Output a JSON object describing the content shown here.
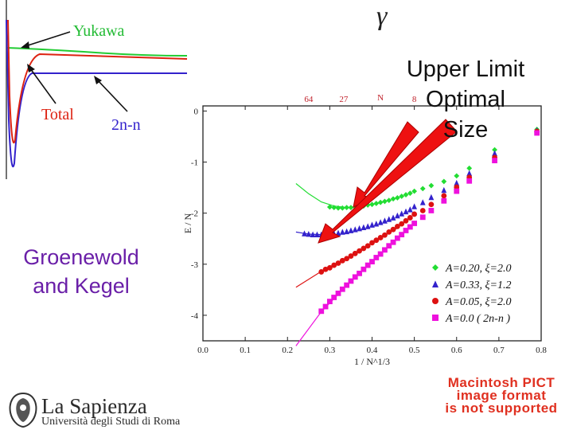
{
  "slide": {
    "symbol": "γ",
    "callout": [
      "Upper Limit",
      "Optimal",
      "Size"
    ],
    "left_caption": [
      "Groenewold",
      "and Kegel"
    ],
    "pict_notice": [
      "Macintosh PICT",
      "image format",
      "is not supported"
    ],
    "logo": {
      "name": "La Sapienza",
      "subtitle": "Università degli Studi di Roma",
      "icon": "sapienza-seal"
    }
  },
  "chart_data": [
    {
      "type": "line",
      "title": "",
      "labels": [
        "Yukawa",
        "Total",
        "2n-n"
      ],
      "series": [
        {
          "name": "Yukawa",
          "color": "#22cc33"
        },
        {
          "name": "Total",
          "color": "#dd2211"
        },
        {
          "name": "2n-n",
          "color": "#3322cc"
        }
      ]
    },
    {
      "type": "scatter",
      "xlabel": "1 / N^1/3",
      "ylabel": "E / N",
      "xlim": [
        0.0,
        0.8
      ],
      "ylim": [
        -4.5,
        0.1
      ],
      "x_ticks": [
        "0.0",
        "0.1",
        "0.2",
        "0.3",
        "0.4",
        "0.5",
        "0.6",
        "0.7",
        "0.8"
      ],
      "y_ticks": [
        "0",
        "-1",
        "-2",
        "-3",
        "-4"
      ],
      "top_axis_label": "N",
      "top_ticks": [
        {
          "label": "64",
          "x": 0.25
        },
        {
          "label": "27",
          "x": 0.333
        },
        {
          "label": "8",
          "x": 0.5
        }
      ],
      "legend_position": "bottom-right",
      "series": [
        {
          "name": "A=0.20, ξ=2.0",
          "color": "#22dd33",
          "marker": "diamond",
          "x": [
            0.3,
            0.31,
            0.32,
            0.33,
            0.34,
            0.35,
            0.36,
            0.37,
            0.38,
            0.39,
            0.4,
            0.41,
            0.42,
            0.43,
            0.44,
            0.45,
            0.46,
            0.47,
            0.48,
            0.49,
            0.5,
            0.52,
            0.54,
            0.57,
            0.6,
            0.63,
            0.69,
            0.79
          ],
          "y": [
            -1.88,
            -1.89,
            -1.9,
            -1.9,
            -1.89,
            -1.89,
            -1.88,
            -1.87,
            -1.86,
            -1.84,
            -1.83,
            -1.81,
            -1.79,
            -1.77,
            -1.75,
            -1.72,
            -1.7,
            -1.67,
            -1.64,
            -1.61,
            -1.57,
            -1.52,
            -1.46,
            -1.38,
            -1.27,
            -1.12,
            -0.76,
            -0.36
          ]
        },
        {
          "name": "A=0.33, ξ=1.2",
          "color": "#3322cc",
          "marker": "triangle",
          "x": [
            0.24,
            0.25,
            0.26,
            0.27,
            0.28,
            0.29,
            0.3,
            0.31,
            0.32,
            0.33,
            0.34,
            0.35,
            0.36,
            0.37,
            0.38,
            0.39,
            0.4,
            0.41,
            0.42,
            0.43,
            0.44,
            0.45,
            0.46,
            0.47,
            0.48,
            0.49,
            0.5,
            0.52,
            0.54,
            0.57,
            0.6,
            0.63,
            0.69,
            0.79
          ],
          "y": [
            -2.4,
            -2.41,
            -2.42,
            -2.42,
            -2.42,
            -2.41,
            -2.41,
            -2.4,
            -2.39,
            -2.37,
            -2.36,
            -2.34,
            -2.32,
            -2.3,
            -2.28,
            -2.26,
            -2.23,
            -2.21,
            -2.18,
            -2.15,
            -2.12,
            -2.09,
            -2.05,
            -2.01,
            -1.97,
            -1.93,
            -1.87,
            -1.79,
            -1.69,
            -1.55,
            -1.41,
            -1.22,
            -0.83,
            -0.38
          ]
        },
        {
          "name": "A=0.05, ξ=2.0",
          "color": "#dd1111",
          "marker": "circle",
          "x": [
            0.28,
            0.29,
            0.3,
            0.31,
            0.32,
            0.33,
            0.34,
            0.35,
            0.36,
            0.37,
            0.38,
            0.39,
            0.4,
            0.41,
            0.42,
            0.43,
            0.44,
            0.45,
            0.46,
            0.47,
            0.48,
            0.49,
            0.5,
            0.52,
            0.54,
            0.57,
            0.6,
            0.63,
            0.69,
            0.79
          ],
          "y": [
            -3.15,
            -3.1,
            -3.07,
            -3.02,
            -2.98,
            -2.93,
            -2.89,
            -2.84,
            -2.79,
            -2.74,
            -2.69,
            -2.64,
            -2.58,
            -2.53,
            -2.48,
            -2.43,
            -2.37,
            -2.32,
            -2.26,
            -2.21,
            -2.15,
            -2.09,
            -2.02,
            -1.95,
            -1.83,
            -1.66,
            -1.49,
            -1.3,
            -0.91,
            -0.4
          ]
        },
        {
          "name": "A=0.0 ( 2n-n )",
          "color": "#ee11dd",
          "marker": "square",
          "x": [
            0.28,
            0.29,
            0.3,
            0.31,
            0.32,
            0.33,
            0.34,
            0.35,
            0.36,
            0.37,
            0.38,
            0.39,
            0.4,
            0.41,
            0.42,
            0.43,
            0.44,
            0.45,
            0.46,
            0.47,
            0.48,
            0.49,
            0.5,
            0.52,
            0.54,
            0.57,
            0.6,
            0.63,
            0.69,
            0.79
          ],
          "y": [
            -3.92,
            -3.83,
            -3.73,
            -3.65,
            -3.57,
            -3.49,
            -3.41,
            -3.33,
            -3.25,
            -3.18,
            -3.1,
            -3.02,
            -2.95,
            -2.87,
            -2.8,
            -2.72,
            -2.64,
            -2.57,
            -2.49,
            -2.42,
            -2.34,
            -2.27,
            -2.2,
            -2.08,
            -1.95,
            -1.76,
            -1.57,
            -1.37,
            -0.97,
            -0.43
          ]
        }
      ],
      "fit_lines": [
        {
          "color": "#22dd33",
          "x": [
            0.22,
            0.25,
            0.28,
            0.31,
            0.34
          ],
          "y": [
            -1.42,
            -1.62,
            -1.78,
            -1.86,
            -1.89
          ]
        },
        {
          "color": "#3322cc",
          "x": [
            0.22,
            0.25,
            0.28
          ],
          "y": [
            -2.37,
            -2.41,
            -2.42
          ]
        },
        {
          "color": "#dd1111",
          "x": [
            0.22,
            0.28,
            0.34,
            0.4,
            0.46
          ],
          "y": [
            -3.45,
            -3.14,
            -2.88,
            -2.59,
            -2.29
          ]
        },
        {
          "color": "#ee11dd",
          "x": [
            0.22,
            0.28,
            0.34,
            0.4
          ],
          "y": [
            -4.6,
            -3.93,
            -3.42,
            -2.96
          ]
        }
      ]
    }
  ]
}
